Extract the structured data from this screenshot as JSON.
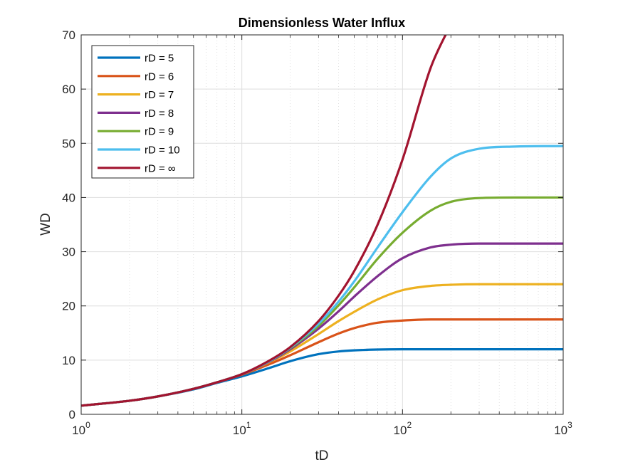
{
  "chart_data": {
    "type": "line",
    "title": "Dimensionless Water Influx",
    "xlabel": "tD",
    "ylabel": "WD",
    "xscale": "log",
    "xlim": [
      1,
      1000
    ],
    "ylim": [
      0,
      70
    ],
    "x_ticks": [
      {
        "value": 1,
        "base": "10",
        "exp": "0"
      },
      {
        "value": 10,
        "base": "10",
        "exp": "1"
      },
      {
        "value": 100,
        "base": "10",
        "exp": "2"
      },
      {
        "value": 1000,
        "base": "10",
        "exp": "3"
      }
    ],
    "y_ticks": [
      {
        "value": 0,
        "label": "0"
      },
      {
        "value": 10,
        "label": "10"
      },
      {
        "value": 20,
        "label": "20"
      },
      {
        "value": 30,
        "label": "30"
      },
      {
        "value": 40,
        "label": "40"
      },
      {
        "value": 50,
        "label": "50"
      },
      {
        "value": 60,
        "label": "60"
      },
      {
        "value": 70,
        "label": "70"
      }
    ],
    "grid": true,
    "minor_grid": true,
    "legend_position": "top-left",
    "x": [
      1,
      2,
      3,
      5,
      7,
      10,
      15,
      20,
      30,
      40,
      50,
      70,
      100,
      150,
      200,
      300,
      500,
      1000
    ],
    "series": [
      {
        "name": "rD = 5",
        "color": "#0072BD",
        "values": [
          1.6,
          2.5,
          3.3,
          4.6,
          5.8,
          7.0,
          8.6,
          9.8,
          11.1,
          11.6,
          11.8,
          11.95,
          12.0,
          12.0,
          12.0,
          12.0,
          12.0,
          12.0
        ]
      },
      {
        "name": "rD = 6",
        "color": "#D95319",
        "values": [
          1.6,
          2.5,
          3.3,
          4.7,
          5.9,
          7.3,
          9.3,
          10.9,
          13.3,
          14.9,
          15.9,
          16.9,
          17.3,
          17.5,
          17.5,
          17.5,
          17.5,
          17.5
        ]
      },
      {
        "name": "rD = 7",
        "color": "#EDB120",
        "values": [
          1.6,
          2.5,
          3.3,
          4.7,
          5.9,
          7.4,
          9.7,
          11.6,
          14.8,
          17.2,
          18.9,
          21.2,
          22.9,
          23.7,
          23.9,
          24.0,
          24.0,
          24.0
        ]
      },
      {
        "name": "rD = 8",
        "color": "#7E2F8E",
        "values": [
          1.6,
          2.5,
          3.3,
          4.7,
          5.9,
          7.4,
          9.8,
          12.0,
          15.8,
          19.0,
          21.7,
          25.5,
          28.8,
          30.8,
          31.3,
          31.5,
          31.5,
          31.5
        ]
      },
      {
        "name": "rD = 9",
        "color": "#77AC30",
        "values": [
          1.6,
          2.5,
          3.3,
          4.7,
          5.9,
          7.4,
          9.9,
          12.2,
          16.3,
          20.1,
          23.4,
          28.7,
          33.5,
          37.6,
          39.2,
          39.9,
          40.0,
          40.0
        ]
      },
      {
        "name": "rD = 10",
        "color": "#4DBEEE",
        "values": [
          1.6,
          2.5,
          3.3,
          4.7,
          5.9,
          7.4,
          9.9,
          12.3,
          16.7,
          20.8,
          24.5,
          30.8,
          37.3,
          43.9,
          47.2,
          49.0,
          49.4,
          49.5
        ]
      },
      {
        "name": "rD = ∞",
        "color": "#A2142F",
        "values": [
          1.6,
          2.5,
          3.3,
          4.7,
          5.9,
          7.4,
          10.0,
          12.4,
          17.2,
          21.9,
          26.4,
          35.0,
          47.0,
          64.0,
          72.0,
          null,
          null,
          null
        ]
      }
    ]
  }
}
